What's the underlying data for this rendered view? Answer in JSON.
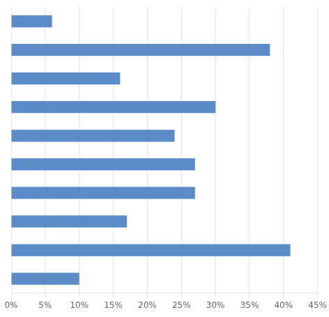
{
  "chart_data": {
    "type": "bar",
    "orientation": "horizontal",
    "categories": [
      null,
      null,
      null,
      null,
      null,
      null,
      null,
      null,
      null,
      null
    ],
    "values": [
      6,
      38,
      16,
      30,
      24,
      27,
      27,
      17,
      41,
      10
    ],
    "color": "#5b8bc9",
    "xlim": [
      0,
      45
    ],
    "xticks": [
      {
        "value": 0,
        "label": "0%"
      },
      {
        "value": 5,
        "label": "5%"
      },
      {
        "value": 10,
        "label": "10%"
      },
      {
        "value": 15,
        "label": "15%"
      },
      {
        "value": 20,
        "label": "20%"
      },
      {
        "value": 25,
        "label": "25%"
      },
      {
        "value": 30,
        "label": "30%"
      },
      {
        "value": 35,
        "label": "35%"
      },
      {
        "value": 40,
        "label": "40%"
      },
      {
        "value": 45,
        "label": "45%"
      }
    ],
    "grid": true,
    "tick_labels": "x"
  }
}
